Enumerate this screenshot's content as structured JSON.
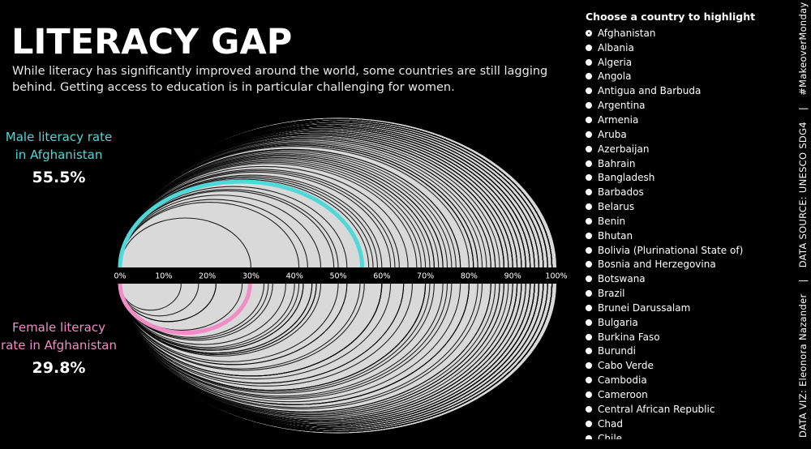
{
  "header": {
    "title": "LITERACY GAP",
    "subtitle": "While literacy has significantly improved around the world, some countries are still lagging behind. Getting access to education is in particular challenging for women."
  },
  "male": {
    "label": "Male literacy rate in Afghanistan",
    "value": "55.5%",
    "color": "#4fd8d8"
  },
  "female": {
    "label": "Female literacy rate in Afghanistan",
    "value": "29.8%",
    "color": "#f08cc6"
  },
  "selector": {
    "title": "Choose a country to highlight",
    "selected": "Afghanistan",
    "options": [
      "Afghanistan",
      "Albania",
      "Algeria",
      "Angola",
      "Antigua and Barbuda",
      "Argentina",
      "Armenia",
      "Aruba",
      "Azerbaijan",
      "Bahrain",
      "Bangladesh",
      "Barbados",
      "Belarus",
      "Benin",
      "Bhutan",
      "Bolivia (Plurinational State of)",
      "Bosnia and Herzegovina",
      "Botswana",
      "Brazil",
      "Brunei Darussalam",
      "Bulgaria",
      "Burkina Faso",
      "Burundi",
      "Cabo Verde",
      "Cambodia",
      "Cameroon",
      "Central African Republic",
      "Chad",
      "Chile"
    ]
  },
  "credits": {
    "hashtag": "#MakeoverMonday",
    "source": "DATA SOURCE: UNESCO SDG4",
    "separator": "|",
    "author": "DATA VIZ: Eleonora Nazander"
  },
  "chart_data": {
    "type": "arc",
    "axis_ticks": [
      "0%",
      "10%",
      "20%",
      "30%",
      "40%",
      "50%",
      "60%",
      "70%",
      "80%",
      "90%",
      "100%"
    ],
    "xlim": [
      0,
      100
    ],
    "highlight": {
      "male": 55.5,
      "female": 29.8
    },
    "highlight_colors": {
      "male": "#4fd8d8",
      "female": "#f08cc6"
    },
    "male_rates": [
      55.5,
      72,
      78,
      88,
      92,
      99,
      99,
      99,
      99,
      98,
      76,
      96,
      99,
      30,
      73,
      93,
      99,
      98,
      93,
      94,
      97,
      98,
      46,
      43,
      92,
      89,
      81,
      77,
      57,
      41,
      99,
      88,
      62,
      98,
      96,
      59,
      85,
      85,
      66,
      90,
      93,
      74,
      99,
      95,
      97,
      99,
      68,
      83,
      94,
      98,
      99,
      50,
      87,
      81,
      91,
      95,
      93,
      82,
      94,
      99,
      70,
      86,
      64,
      93,
      97,
      88,
      52,
      99,
      97,
      60,
      81,
      49,
      96,
      72,
      91,
      86,
      99,
      63,
      90,
      99,
      71,
      92,
      99,
      95,
      75,
      98,
      80,
      98,
      97,
      89,
      58,
      94,
      93,
      99,
      84,
      88,
      95,
      90,
      69,
      99,
      99,
      97,
      96,
      91,
      78,
      98,
      94,
      88,
      99,
      95,
      74,
      82,
      99,
      90
    ],
    "female_rates": [
      29.8,
      60,
      45,
      52,
      95,
      99,
      99,
      96,
      95,
      98,
      60,
      96,
      99,
      18,
      46,
      95,
      99,
      99,
      94,
      95,
      96,
      98,
      22,
      34,
      91,
      78,
      75,
      67,
      41,
      14,
      99,
      83,
      42,
      98,
      95,
      44,
      80,
      70,
      52,
      90,
      92,
      40,
      99,
      97,
      96,
      99,
      38,
      85,
      82,
      97,
      99,
      22,
      65,
      70,
      90,
      96,
      94,
      70,
      91,
      99,
      45,
      76,
      42,
      93,
      96,
      87,
      28,
      99,
      97,
      44,
      60,
      30,
      96,
      62,
      91,
      88,
      99,
      35,
      91,
      99,
      50,
      89,
      99,
      94,
      60,
      97,
      71,
      98,
      95,
      88,
      33,
      93,
      92,
      99,
      74,
      85,
      96,
      80,
      56,
      99,
      98,
      96,
      95,
      87,
      65,
      97,
      92,
      80,
      99,
      94,
      55,
      72,
      99,
      86
    ]
  }
}
